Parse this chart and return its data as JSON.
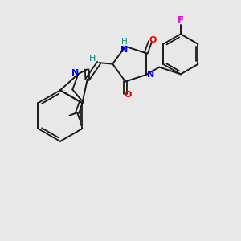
{
  "background_color": "#e8e8e8",
  "bond_color": "#1a1a1a",
  "N_color": "#0000ee",
  "O_color": "#ee0000",
  "F_color": "#ee00ee",
  "H_color": "#008888",
  "figsize": [
    3.0,
    3.0
  ],
  "dpi": 100,
  "xlim": [
    0,
    10
  ],
  "ylim": [
    0,
    10
  ]
}
